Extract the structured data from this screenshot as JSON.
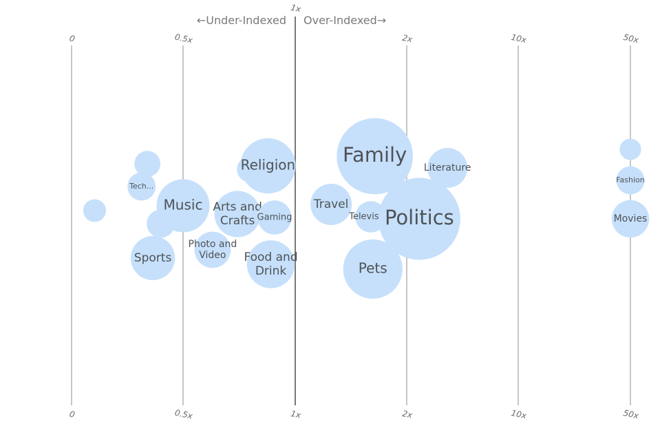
{
  "chart_data": {
    "type": "scatter",
    "subtype": "beeswarm-bubble",
    "annotations": {
      "under": "←Under-Indexed",
      "over": "Over-Indexed→"
    },
    "axis": {
      "scale": "index multiplier (piecewise log)",
      "ticks": [
        {
          "value": 0,
          "label": "0"
        },
        {
          "value": 0.5,
          "label": "0.5x"
        },
        {
          "value": 1,
          "label": "1x"
        },
        {
          "value": 2,
          "label": "2x"
        },
        {
          "value": 10,
          "label": "10x"
        },
        {
          "value": 50,
          "label": "50x"
        }
      ]
    },
    "series": [
      {
        "label": "",
        "index": 0.06,
        "size": 1.7
      },
      {
        "label": "Tech...",
        "index": 0.32,
        "size": 2.6
      },
      {
        "label": "",
        "index": 0.34,
        "size": 2.2
      },
      {
        "label": "",
        "index": 0.32,
        "size": 2.6
      },
      {
        "label": "Music",
        "index": 0.5,
        "size": 9.2
      },
      {
        "label": "Sports",
        "index": 0.42,
        "size": 6.4
      },
      {
        "label": "Photo and Video",
        "index": 0.6,
        "size": 4.3
      },
      {
        "label": "",
        "index": 0.7,
        "size": 2.2
      },
      {
        "label": "Arts and Crafts",
        "index": 0.7,
        "size": 7.0
      },
      {
        "label": "Religion",
        "index": 0.92,
        "size": 10.0
      },
      {
        "label": "Gaming",
        "index": 0.88,
        "size": 3.8
      },
      {
        "label": "Food and Drink",
        "index": 0.86,
        "size": 7.5
      },
      {
        "label": "Travel",
        "index": 1.25,
        "size": 5.6
      },
      {
        "label": "Family",
        "index": 1.64,
        "size": 19.0
      },
      {
        "label": "Television",
        "index": 1.6,
        "size": 3.2
      },
      {
        "label": "Pets",
        "index": 1.62,
        "size": 11.5
      },
      {
        "label": "Politics",
        "index": 2.4,
        "size": 22.0
      },
      {
        "label": "Literature",
        "index": 3.6,
        "size": 5.2
      },
      {
        "label": "",
        "index": 50,
        "size": 1.5
      },
      {
        "label": "Fashion",
        "index": 50,
        "size": 2.6
      },
      {
        "label": "Movies",
        "index": 50,
        "size": 4.6
      }
    ],
    "colors": {
      "bubble": "#c6e0fb",
      "label": "#4e5256",
      "axis": "#8c8c8c",
      "axis_major": "#555555"
    }
  }
}
